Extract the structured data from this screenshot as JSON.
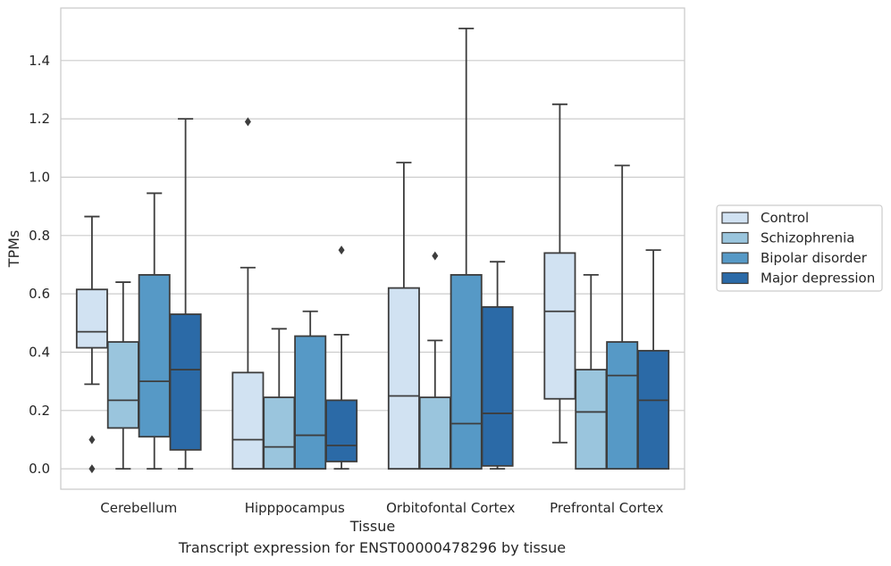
{
  "caption": "Transcript expression for ENST00000478296 by tissue",
  "chart_data": {
    "type": "box",
    "xlabel": "Tissue",
    "ylabel": "TPMs",
    "ylim": [
      -0.07,
      1.58
    ],
    "yticks": [
      0.0,
      0.2,
      0.4,
      0.6,
      0.8,
      1.0,
      1.2,
      1.4
    ],
    "ytick_labels": [
      "0.0",
      "0.2",
      "0.4",
      "0.6",
      "0.8",
      "1.0",
      "1.2",
      "1.4"
    ],
    "grid": true,
    "legend_position": "right",
    "categories": [
      "Cerebellum",
      "Hipppocampus",
      "Orbitofontal Cortex",
      "Prefrontal Cortex"
    ],
    "series": [
      {
        "name": "Control",
        "color": "#d1e2f2",
        "boxes": [
          {
            "whislo": 0.29,
            "q1": 0.415,
            "med": 0.47,
            "q3": 0.615,
            "whishi": 0.865,
            "fliers": [
              0.1,
              0.0
            ]
          },
          {
            "whislo": 0.0,
            "q1": 0.0,
            "med": 0.1,
            "q3": 0.33,
            "whishi": 0.69,
            "fliers": [
              1.19
            ]
          },
          {
            "whislo": 0.0,
            "q1": 0.0,
            "med": 0.25,
            "q3": 0.62,
            "whishi": 1.05,
            "fliers": []
          },
          {
            "whislo": 0.09,
            "q1": 0.24,
            "med": 0.54,
            "q3": 0.74,
            "whishi": 1.25,
            "fliers": []
          }
        ]
      },
      {
        "name": "Schizophrenia",
        "color": "#9ac5dd",
        "boxes": [
          {
            "whislo": 0.0,
            "q1": 0.14,
            "med": 0.235,
            "q3": 0.435,
            "whishi": 0.64,
            "fliers": []
          },
          {
            "whislo": 0.0,
            "q1": 0.0,
            "med": 0.075,
            "q3": 0.245,
            "whishi": 0.48,
            "fliers": []
          },
          {
            "whislo": 0.0,
            "q1": 0.0,
            "med": 0.0,
            "q3": 0.245,
            "whishi": 0.44,
            "fliers": [
              0.73
            ]
          },
          {
            "whislo": 0.0,
            "q1": 0.0,
            "med": 0.195,
            "q3": 0.34,
            "whishi": 0.665,
            "fliers": []
          }
        ]
      },
      {
        "name": "Bipolar disorder",
        "color": "#5699c6",
        "boxes": [
          {
            "whislo": 0.0,
            "q1": 0.11,
            "med": 0.3,
            "q3": 0.665,
            "whishi": 0.945,
            "fliers": []
          },
          {
            "whislo": 0.0,
            "q1": 0.0,
            "med": 0.115,
            "q3": 0.455,
            "whishi": 0.54,
            "fliers": []
          },
          {
            "whislo": 0.0,
            "q1": 0.0,
            "med": 0.155,
            "q3": 0.665,
            "whishi": 1.51,
            "fliers": []
          },
          {
            "whislo": 0.0,
            "q1": 0.0,
            "med": 0.32,
            "q3": 0.435,
            "whishi": 1.04,
            "fliers": []
          }
        ]
      },
      {
        "name": "Major depression",
        "color": "#2b6aa7",
        "boxes": [
          {
            "whislo": 0.0,
            "q1": 0.065,
            "med": 0.34,
            "q3": 0.53,
            "whishi": 1.2,
            "fliers": []
          },
          {
            "whislo": 0.0,
            "q1": 0.025,
            "med": 0.08,
            "q3": 0.235,
            "whishi": 0.46,
            "fliers": [
              0.75
            ]
          },
          {
            "whislo": 0.0,
            "q1": 0.01,
            "med": 0.19,
            "q3": 0.555,
            "whishi": 0.71,
            "fliers": []
          },
          {
            "whislo": 0.0,
            "q1": 0.0,
            "med": 0.235,
            "q3": 0.405,
            "whishi": 0.75,
            "fliers": []
          }
        ]
      }
    ]
  }
}
